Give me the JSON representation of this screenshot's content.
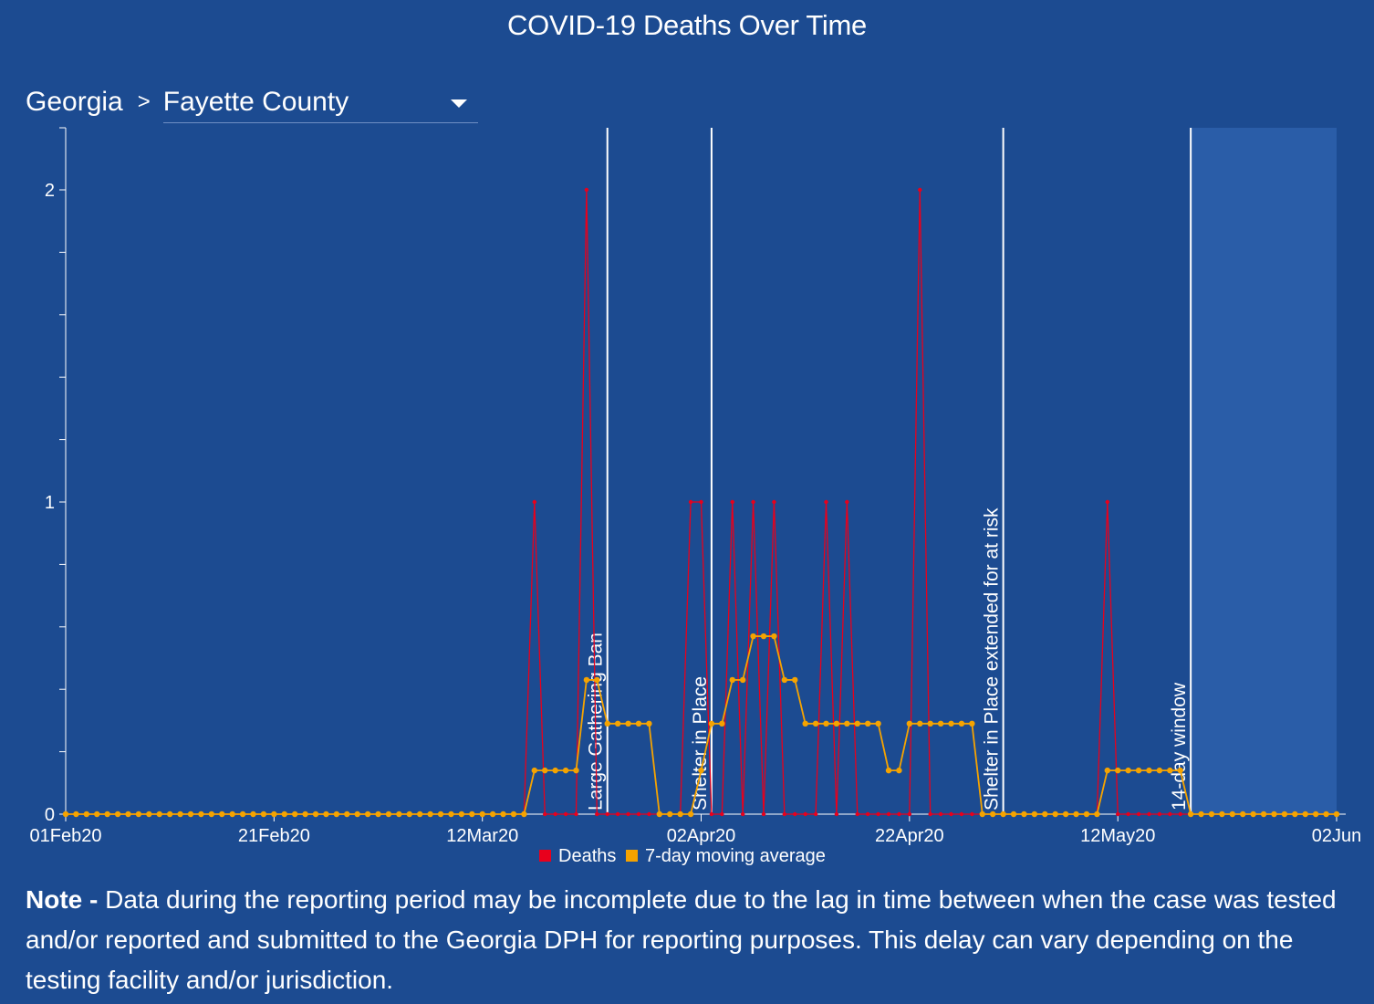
{
  "page": {
    "title": "COVID-19 Deaths Over Time",
    "state": "Georgia",
    "separator": ">",
    "county": "Fayette County",
    "note_label": "Note -",
    "note_text": "Data during the reporting period may be incomplete due to the lag in time between when the case was tested and/or reported and submitted to the Georgia DPH for reporting purposes. This delay can vary depending on the testing facility and/or jurisdiction."
  },
  "colors": {
    "background": "#1c4b91",
    "shaded_window": "#2a5da8",
    "deaths": "#e8001c",
    "moving_average": "#f5a300",
    "annotation_line": "#ffffff"
  },
  "chart_data": {
    "type": "line",
    "title": "COVID-19 Deaths Over Time",
    "x_start": "2020-02-01",
    "x_end": "2020-06-02",
    "xtick_labels": [
      "01Feb20",
      "21Feb20",
      "12Mar20",
      "02Apr20",
      "22Apr20",
      "12May20",
      "02Jun"
    ],
    "xtick_dates": [
      "2020-02-01",
      "2020-02-21",
      "2020-03-12",
      "2020-04-02",
      "2020-04-22",
      "2020-05-12",
      "2020-06-02"
    ],
    "ylim": [
      0,
      2.2
    ],
    "ytick_labels": [
      "0",
      "1",
      "2"
    ],
    "ytick_values": [
      0,
      1,
      2
    ],
    "legend_position": "bottom",
    "series": [
      {
        "name": "Deaths",
        "color": "#e8001c",
        "dates": [
          "2020-03-17",
          "2020-03-22",
          "2020-04-01",
          "2020-04-02",
          "2020-04-05",
          "2020-04-07",
          "2020-04-09",
          "2020-04-14",
          "2020-04-16",
          "2020-04-23",
          "2020-05-11"
        ],
        "values": [
          1,
          2,
          1,
          1,
          1,
          1,
          1,
          1,
          1,
          2,
          1
        ]
      },
      {
        "name": "7-day moving average",
        "color": "#f5a300",
        "dates": [
          "2020-03-17",
          "2020-03-18",
          "2020-03-19",
          "2020-03-20",
          "2020-03-21",
          "2020-03-22",
          "2020-03-23",
          "2020-03-24",
          "2020-03-25",
          "2020-03-26",
          "2020-03-27",
          "2020-03-28",
          "2020-03-29",
          "2020-03-30",
          "2020-03-31",
          "2020-04-01",
          "2020-04-02",
          "2020-04-03",
          "2020-04-04",
          "2020-04-05",
          "2020-04-06",
          "2020-04-07",
          "2020-04-08",
          "2020-04-09",
          "2020-04-10",
          "2020-04-11",
          "2020-04-12",
          "2020-04-13",
          "2020-04-14",
          "2020-04-15",
          "2020-04-16",
          "2020-04-17",
          "2020-04-18",
          "2020-04-19",
          "2020-04-20",
          "2020-04-21",
          "2020-04-22",
          "2020-04-23",
          "2020-04-24",
          "2020-04-25",
          "2020-04-26",
          "2020-04-27",
          "2020-04-28",
          "2020-04-29",
          "2020-04-30",
          "2020-05-01",
          "2020-05-02",
          "2020-05-03",
          "2020-05-04",
          "2020-05-05",
          "2020-05-06",
          "2020-05-07",
          "2020-05-08",
          "2020-05-09",
          "2020-05-10",
          "2020-05-11",
          "2020-05-12",
          "2020-05-13",
          "2020-05-14",
          "2020-05-15",
          "2020-05-16",
          "2020-05-17",
          "2020-05-18",
          "2020-05-19"
        ],
        "values": [
          0.14,
          0.14,
          0.14,
          0.14,
          0.14,
          0.43,
          0.43,
          0.29,
          0.29,
          0.29,
          0.29,
          0.29,
          0,
          0,
          0,
          0,
          0.14,
          0.29,
          0.29,
          0.43,
          0.43,
          0.57,
          0.57,
          0.57,
          0.43,
          0.43,
          0.29,
          0.29,
          0.29,
          0.29,
          0.29,
          0.29,
          0.29,
          0.29,
          0.14,
          0.14,
          0.29,
          0.29,
          0.29,
          0.29,
          0.29,
          0.29,
          0.29,
          0,
          0,
          0,
          0,
          0,
          0,
          0,
          0,
          0,
          0,
          0,
          0,
          0.14,
          0.14,
          0.14,
          0.14,
          0.14,
          0.14,
          0.14,
          0.14,
          0
        ]
      }
    ],
    "annotations": [
      {
        "label": "Large Gathering Ban",
        "date": "2020-03-24"
      },
      {
        "label": "Shelter in Place",
        "date": "2020-04-03"
      },
      {
        "label": "Shelter in Place extended for at risk",
        "date": "2020-05-01"
      },
      {
        "label": "14-day window",
        "date": "2020-05-19"
      }
    ],
    "shaded_window_start": "2020-05-19"
  }
}
